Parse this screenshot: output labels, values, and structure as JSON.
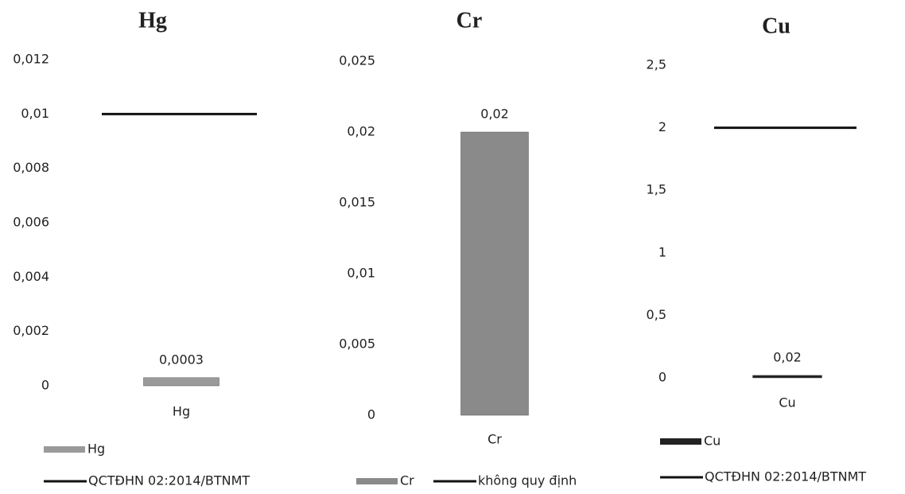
{
  "chart_data": [
    {
      "type": "bar",
      "title": "Hg",
      "categories": [
        "Hg"
      ],
      "series": [
        {
          "name": "Hg",
          "color": "#9a9a9a",
          "values": [
            0.0003
          ],
          "value_labels": [
            "0,0003"
          ]
        }
      ],
      "reference_line": {
        "name": "QCTĐHN 02:2014/BTNMT",
        "value": 0.01,
        "color": "#111111"
      },
      "ylim": [
        0,
        0.012
      ],
      "yticks": [
        0,
        {
          "value": 0.002,
          "label": "0,002"
        },
        {
          "value": 0.004,
          "label": "0,004"
        },
        {
          "value": 0.006,
          "label": "0,006"
        },
        {
          "value": 0.008,
          "label": "0,008"
        },
        {
          "value": 0.01,
          "label": "0,01"
        },
        {
          "value": 0.012,
          "label": "0,012"
        }
      ]
    },
    {
      "type": "bar",
      "title": "Cr",
      "categories": [
        "Cr"
      ],
      "series": [
        {
          "name": "Cr",
          "color": "#8a8a8a",
          "values": [
            0.02
          ],
          "value_labels": [
            "0,02"
          ]
        }
      ],
      "reference_line": {
        "name": "không quy định",
        "color": "#111111"
      },
      "ylim": [
        0,
        0.025
      ],
      "yticks": [
        0,
        {
          "value": 0.005,
          "label": "0,005"
        },
        {
          "value": 0.01,
          "label": "0,01"
        },
        {
          "value": 0.015,
          "label": "0,015"
        },
        {
          "value": 0.02,
          "label": "0,02"
        },
        {
          "value": 0.025,
          "label": "0,025"
        }
      ]
    },
    {
      "type": "bar",
      "title": "Cu",
      "categories": [
        "Cu"
      ],
      "series": [
        {
          "name": "Cu",
          "color": "#222222",
          "values": [
            0.02
          ],
          "value_labels": [
            "0,02"
          ]
        }
      ],
      "reference_line": {
        "name": "QCTĐHN 02:2014/BTNMT",
        "value": 2,
        "color": "#111111"
      },
      "ylim": [
        0,
        2.5
      ],
      "yticks": [
        0,
        {
          "value": 0.5,
          "label": "0,5"
        },
        1,
        {
          "value": 1.5,
          "label": "1,5"
        },
        2,
        {
          "value": 2.5,
          "label": "2,5"
        }
      ]
    }
  ]
}
